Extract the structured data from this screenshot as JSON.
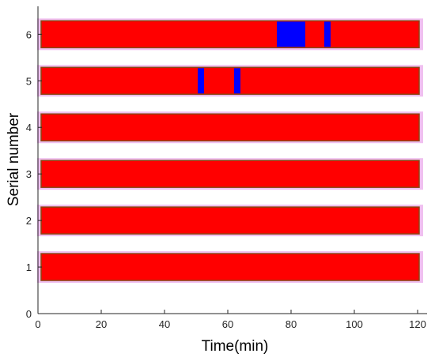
{
  "chart_data": {
    "type": "bar",
    "orientation": "horizontal",
    "xlabel": "Time(min)",
    "ylabel": "Serial number",
    "xlim": [
      0,
      123
    ],
    "ylim": [
      0,
      6.6
    ],
    "xticks": [
      "0",
      "20",
      "40",
      "60",
      "80",
      "100",
      "120"
    ],
    "yticks": [
      "0",
      "1",
      "2",
      "3",
      "4",
      "5",
      "6"
    ],
    "grid": false,
    "legend": "none",
    "colors": {
      "state_a": "#ff0000",
      "state_b": "#0000ff",
      "bar_edge": "#8b4513",
      "shadow": "#f0c0f0"
    },
    "series": [
      {
        "serial": 1,
        "start": 1,
        "end": 120.5,
        "blue_segments": []
      },
      {
        "serial": 2,
        "start": 1,
        "end": 120.5,
        "blue_segments": []
      },
      {
        "serial": 3,
        "start": 1,
        "end": 120.5,
        "blue_segments": []
      },
      {
        "serial": 4,
        "start": 1,
        "end": 120.5,
        "blue_segments": []
      },
      {
        "serial": 5,
        "start": 1,
        "end": 120.5,
        "blue_segments": [
          [
            50.5,
            52.5
          ],
          [
            62,
            64
          ]
        ]
      },
      {
        "serial": 6,
        "start": 1,
        "end": 120.5,
        "blue_segments": [
          [
            75.5,
            84.5
          ],
          [
            90.5,
            92.5
          ]
        ]
      }
    ]
  }
}
